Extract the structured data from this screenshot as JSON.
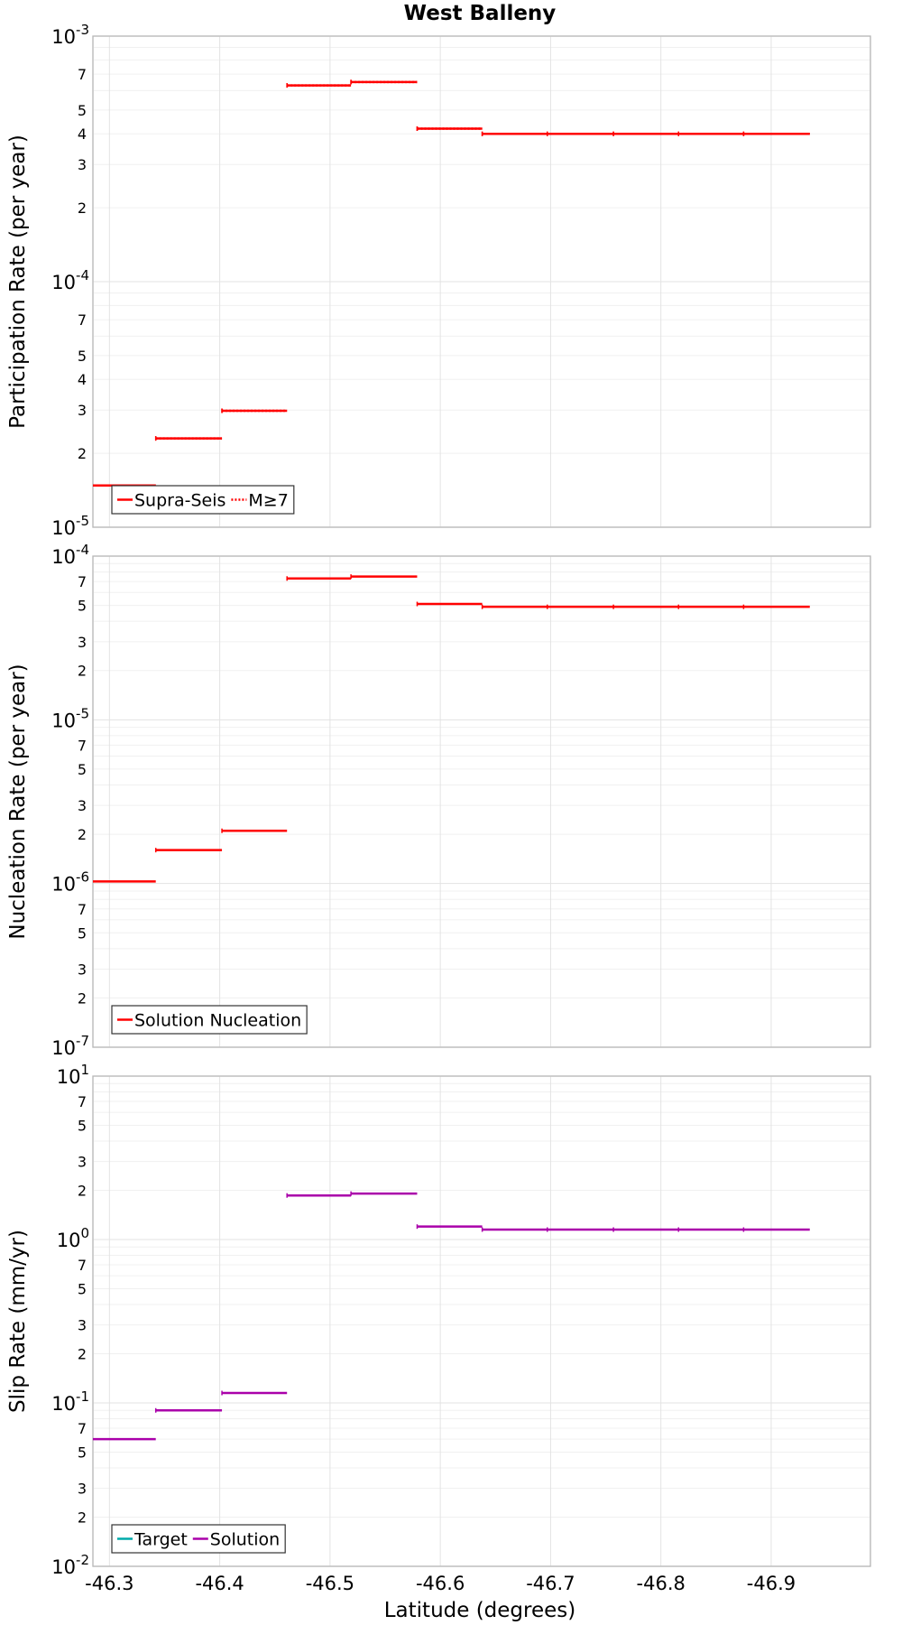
{
  "page": {
    "title": "West Balleny",
    "xlabel": "Latitude (degrees)"
  },
  "chart_data": [
    {
      "id": "participation",
      "type": "line",
      "step": true,
      "ylabel": "Participation Rate (per year)",
      "yscale": "log",
      "ylim": [
        1e-05,
        0.001
      ],
      "xlim": [
        -46.285,
        -46.99
      ],
      "x_ticks": [
        "-46.3",
        "-46.4",
        "-46.5",
        "-46.6",
        "-46.7",
        "-46.8",
        "-46.9"
      ],
      "x_tick_values": [
        -46.3,
        -46.4,
        -46.5,
        -46.6,
        -46.7,
        -46.8,
        -46.9
      ],
      "grid": true,
      "legend_position": "bottom-left",
      "series": [
        {
          "name": "Supra-Seis",
          "color": "#ff0000",
          "style": "solid",
          "segments": [
            {
              "x0": -46.285,
              "x1": -46.342,
              "y": 1.48e-05
            },
            {
              "x0": -46.342,
              "x1": -46.402,
              "y": 2.3e-05
            },
            {
              "x0": -46.402,
              "x1": -46.461,
              "y": 2.98e-05
            },
            {
              "x0": -46.461,
              "x1": -46.519,
              "y": 0.00063
            },
            {
              "x0": -46.519,
              "x1": -46.579,
              "y": 0.00065
            },
            {
              "x0": -46.579,
              "x1": -46.638,
              "y": 0.00042
            },
            {
              "x0": -46.638,
              "x1": -46.697,
              "y": 0.0004
            },
            {
              "x0": -46.697,
              "x1": -46.757,
              "y": 0.0004
            },
            {
              "x0": -46.757,
              "x1": -46.816,
              "y": 0.0004
            },
            {
              "x0": -46.816,
              "x1": -46.875,
              "y": 0.0004
            },
            {
              "x0": -46.875,
              "x1": -46.935,
              "y": 0.0004
            }
          ]
        },
        {
          "name": "M≥7",
          "color": "#ff0000",
          "style": "dotted",
          "segments": [
            {
              "x0": -46.285,
              "x1": -46.342,
              "y": 1.48e-05
            },
            {
              "x0": -46.342,
              "x1": -46.402,
              "y": 2.3e-05
            },
            {
              "x0": -46.402,
              "x1": -46.461,
              "y": 2.98e-05
            },
            {
              "x0": -46.461,
              "x1": -46.519,
              "y": 0.00063
            },
            {
              "x0": -46.519,
              "x1": -46.579,
              "y": 0.00065
            },
            {
              "x0": -46.579,
              "x1": -46.638,
              "y": 0.00042
            },
            {
              "x0": -46.638,
              "x1": -46.697,
              "y": 0.0004
            },
            {
              "x0": -46.697,
              "x1": -46.757,
              "y": 0.0004
            },
            {
              "x0": -46.757,
              "x1": -46.816,
              "y": 0.0004
            },
            {
              "x0": -46.816,
              "x1": -46.875,
              "y": 0.0004
            },
            {
              "x0": -46.875,
              "x1": -46.935,
              "y": 0.0004
            }
          ]
        }
      ]
    },
    {
      "id": "nucleation",
      "type": "line",
      "step": true,
      "ylabel": "Nucleation Rate (per year)",
      "yscale": "log",
      "ylim": [
        1e-07,
        0.0001
      ],
      "xlim": [
        -46.285,
        -46.99
      ],
      "x_ticks": [
        "-46.3",
        "-46.4",
        "-46.5",
        "-46.6",
        "-46.7",
        "-46.8",
        "-46.9"
      ],
      "x_tick_values": [
        -46.3,
        -46.4,
        -46.5,
        -46.6,
        -46.7,
        -46.8,
        -46.9
      ],
      "grid": true,
      "legend_position": "bottom-left",
      "series": [
        {
          "name": "Solution Nucleation",
          "color": "#ff0000",
          "style": "solid",
          "segments": [
            {
              "x0": -46.285,
              "x1": -46.342,
              "y": 1.03e-06
            },
            {
              "x0": -46.342,
              "x1": -46.402,
              "y": 1.6e-06
            },
            {
              "x0": -46.402,
              "x1": -46.461,
              "y": 2.1e-06
            },
            {
              "x0": -46.461,
              "x1": -46.519,
              "y": 7.3e-05
            },
            {
              "x0": -46.519,
              "x1": -46.579,
              "y": 7.5e-05
            },
            {
              "x0": -46.579,
              "x1": -46.638,
              "y": 5.1e-05
            },
            {
              "x0": -46.638,
              "x1": -46.697,
              "y": 4.9e-05
            },
            {
              "x0": -46.697,
              "x1": -46.757,
              "y": 4.9e-05
            },
            {
              "x0": -46.757,
              "x1": -46.816,
              "y": 4.9e-05
            },
            {
              "x0": -46.816,
              "x1": -46.875,
              "y": 4.9e-05
            },
            {
              "x0": -46.875,
              "x1": -46.935,
              "y": 4.9e-05
            }
          ]
        }
      ]
    },
    {
      "id": "slip",
      "type": "line",
      "step": true,
      "ylabel": "Slip Rate (mm/yr)",
      "yscale": "log",
      "ylim": [
        0.01,
        10
      ],
      "xlim": [
        -46.285,
        -46.99
      ],
      "x_ticks": [
        "-46.3",
        "-46.4",
        "-46.5",
        "-46.6",
        "-46.7",
        "-46.8",
        "-46.9"
      ],
      "x_tick_values": [
        -46.3,
        -46.4,
        -46.5,
        -46.6,
        -46.7,
        -46.8,
        -46.9
      ],
      "grid": true,
      "legend_position": "bottom-left",
      "series": [
        {
          "name": "Target",
          "color": "#00aaaa",
          "style": "solid",
          "segments": []
        },
        {
          "name": "Solution",
          "color": "#aa00aa",
          "style": "solid",
          "segments": [
            {
              "x0": -46.285,
              "x1": -46.342,
              "y": 0.06
            },
            {
              "x0": -46.342,
              "x1": -46.402,
              "y": 0.09
            },
            {
              "x0": -46.402,
              "x1": -46.461,
              "y": 0.115
            },
            {
              "x0": -46.461,
              "x1": -46.519,
              "y": 1.86
            },
            {
              "x0": -46.519,
              "x1": -46.579,
              "y": 1.91
            },
            {
              "x0": -46.579,
              "x1": -46.638,
              "y": 1.2
            },
            {
              "x0": -46.638,
              "x1": -46.697,
              "y": 1.15
            },
            {
              "x0": -46.697,
              "x1": -46.757,
              "y": 1.15
            },
            {
              "x0": -46.757,
              "x1": -46.816,
              "y": 1.15
            },
            {
              "x0": -46.816,
              "x1": -46.875,
              "y": 1.15
            },
            {
              "x0": -46.875,
              "x1": -46.935,
              "y": 1.15
            }
          ]
        }
      ]
    }
  ]
}
